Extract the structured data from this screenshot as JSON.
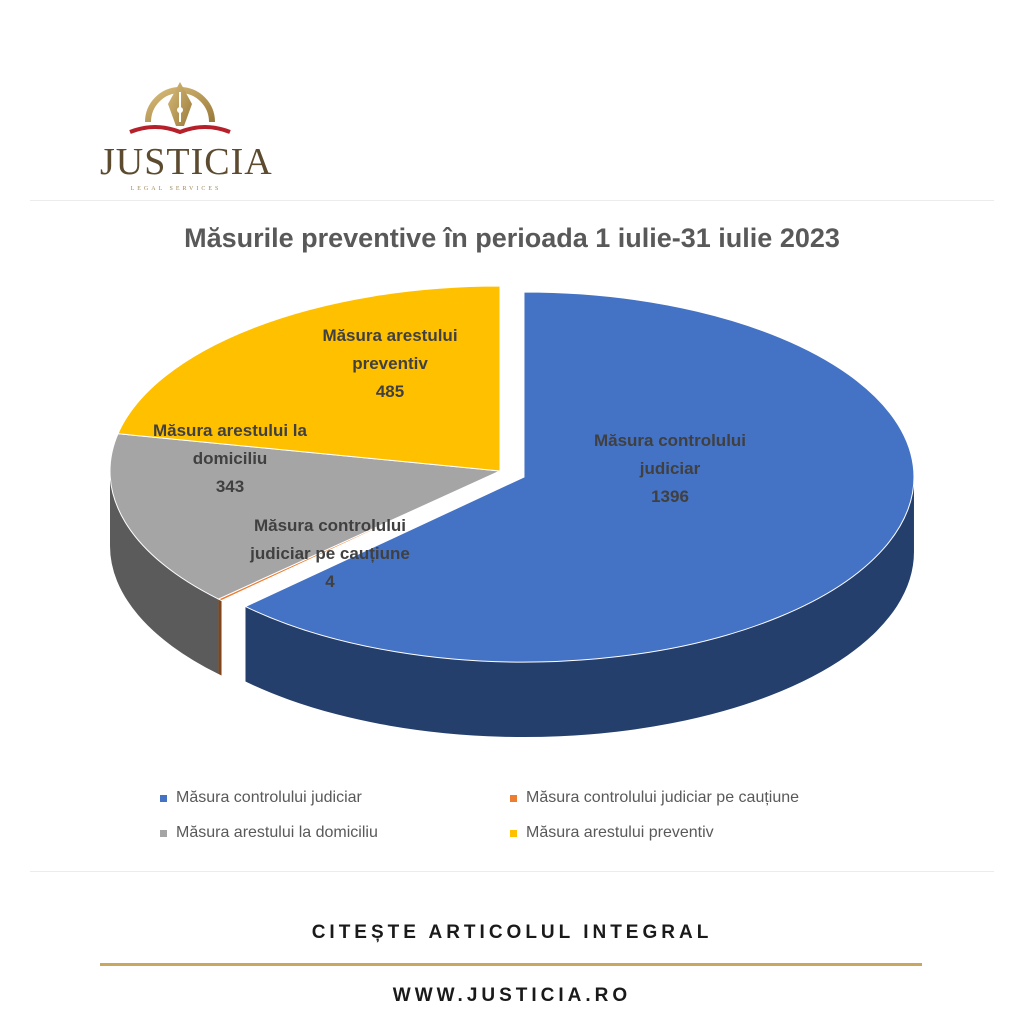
{
  "brand": {
    "name": "JUSTICIA",
    "subtitle": "LEGAL SERVICES",
    "gold": "#b8944a",
    "red": "#b5202a"
  },
  "chart_data": {
    "type": "pie",
    "title": "Măsurile preventive în perioada 1 iulie-31 iulie 2023",
    "slices": [
      {
        "label": "Măsura controlului judiciar",
        "value": 1396,
        "color": "#4472c4",
        "label_lines": [
          "Măsura controlului",
          "judiciar",
          "1396"
        ]
      },
      {
        "label": "Măsura controlului judiciar pe cauțiune",
        "value": 4,
        "color": "#ed7d31",
        "label_lines": [
          "Măsura controlului",
          "judiciar pe cauțiune",
          "4"
        ]
      },
      {
        "label": "Măsura arestului la domiciliu",
        "value": 343,
        "color": "#a5a5a5",
        "label_lines": [
          "Măsura arestului la",
          "domiciliu",
          "343"
        ]
      },
      {
        "label": "Măsura arestului preventiv",
        "value": 485,
        "color": "#ffc000",
        "label_lines": [
          "Măsura arestului",
          "preventiv",
          "485"
        ]
      }
    ],
    "style": "3d-exploded-first-slice",
    "legend_position": "bottom"
  },
  "footer": {
    "cta": "CITEȘTE ARTICOLUL INTEGRAL",
    "site": "WWW.JUSTICIA.RO",
    "line_color": "#c8a85e"
  }
}
